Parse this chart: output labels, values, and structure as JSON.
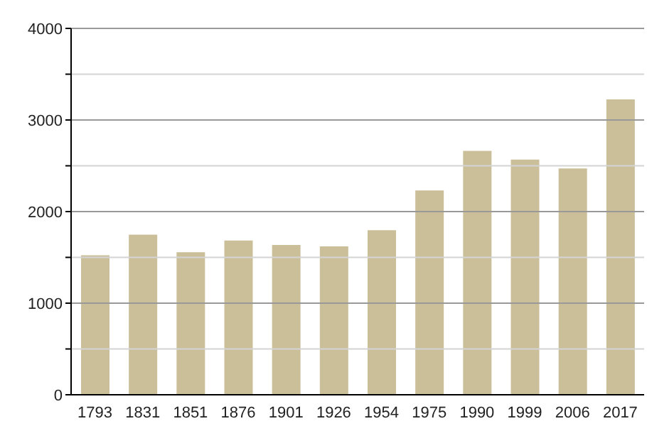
{
  "chart_data": {
    "type": "bar",
    "categories": [
      "1793",
      "1831",
      "1851",
      "1876",
      "1901",
      "1926",
      "1954",
      "1975",
      "1990",
      "1999",
      "2006",
      "2017"
    ],
    "values": [
      1524,
      1749,
      1556,
      1684,
      1636,
      1620,
      1797,
      2230,
      2663,
      2567,
      2471,
      3225
    ],
    "color": "#cbbf9a",
    "ylim": [
      0,
      4000
    ],
    "yticks": [
      0,
      {
        "value": 500,
        "label": null
      },
      1000,
      {
        "value": 1500,
        "label": null
      },
      2000,
      {
        "value": 2500,
        "label": null
      },
      3000,
      {
        "value": 3500,
        "label": null
      },
      4000
    ],
    "grid": "y"
  }
}
